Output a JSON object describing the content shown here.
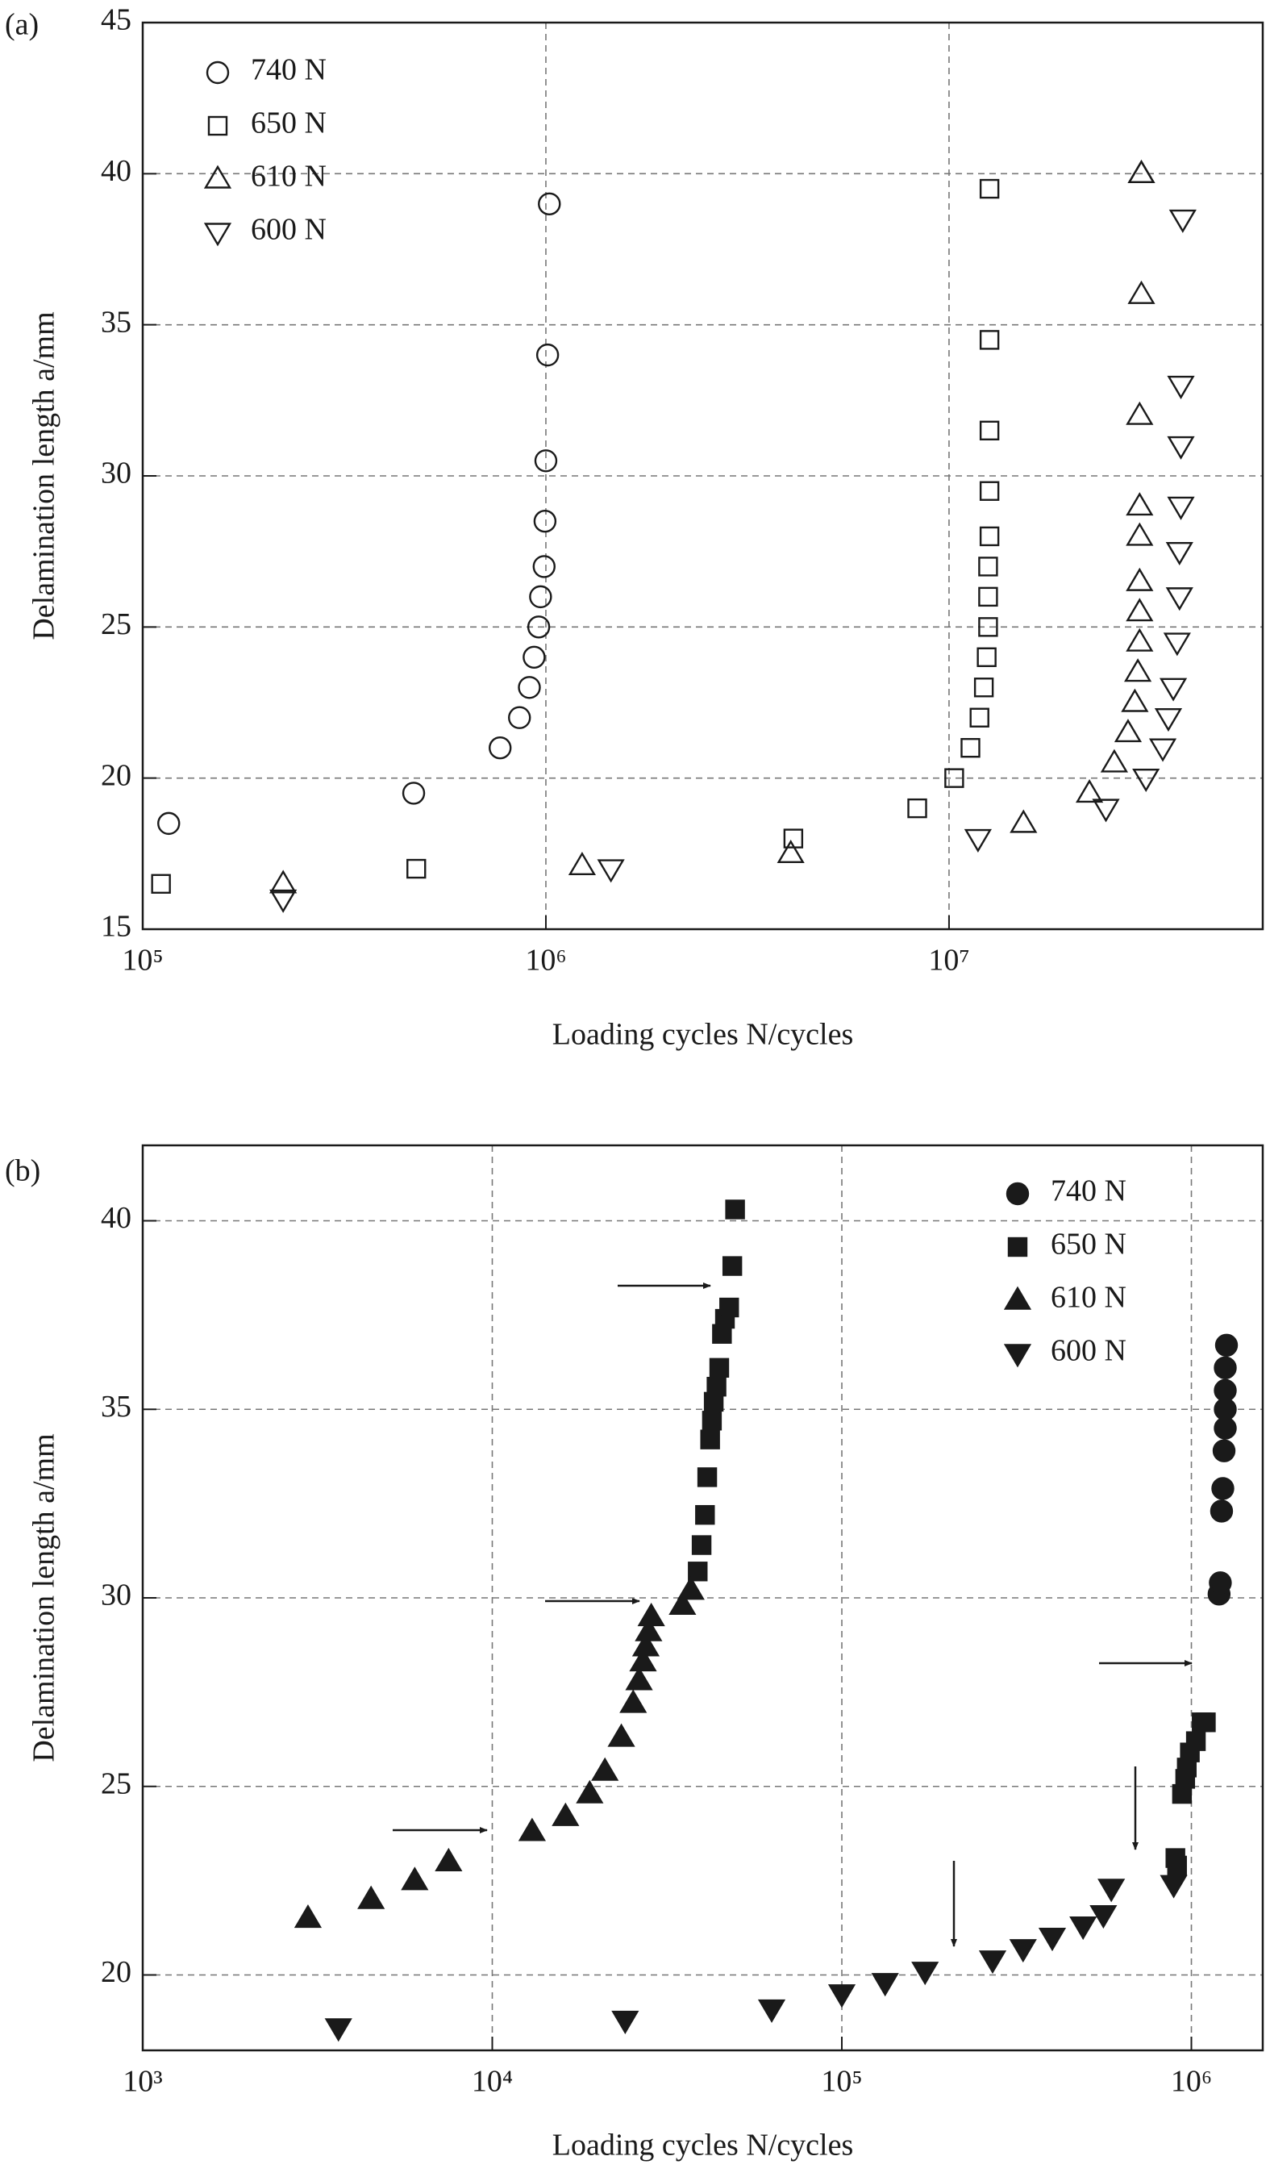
{
  "chart_data": [
    {
      "type": "scatter",
      "panel_label": "(a)",
      "xlabel": "Loading cycles N/cycles",
      "ylabel": "Delamination length a/mm",
      "xscale": "log",
      "xlim": [
        100000,
        60000000
      ],
      "xticks": [
        {
          "value": 100000,
          "label": "10⁵"
        },
        {
          "value": 1000000,
          "label": "10⁶"
        },
        {
          "value": 10000000,
          "label": "10⁷"
        }
      ],
      "ylim": [
        15,
        45
      ],
      "yticks": [
        15,
        20,
        25,
        30,
        35,
        40,
        45
      ],
      "grid": true,
      "legend": "upper left",
      "filled": false,
      "series": [
        {
          "name": "740 N",
          "marker": "circle",
          "color": "#1a1a1a",
          "x": [
            116000,
            470000,
            770000,
            860000,
            910000,
            935000,
            960000,
            970000,
            990000,
            995000,
            1000000,
            1010000,
            1020000
          ],
          "values": [
            18.5,
            19.5,
            21,
            22,
            23,
            24,
            25,
            26,
            27,
            28.5,
            30.5,
            34,
            39
          ]
        },
        {
          "name": "650 N",
          "marker": "square",
          "color": "#1a1a1a",
          "x": [
            111000,
            477000,
            4110000,
            8340000,
            10300000,
            11300000,
            11900000,
            12200000,
            12400000,
            12500000,
            12500000,
            12500000,
            12600000,
            12600000,
            12600000,
            12600000,
            12600000
          ],
          "values": [
            16.5,
            17,
            18,
            19,
            20,
            21,
            22,
            23,
            24,
            25,
            26,
            27,
            28,
            29.5,
            31.5,
            34.5,
            39.5
          ]
        },
        {
          "name": "610 N",
          "marker": "triangle-up",
          "color": "#1a1a1a",
          "x": [
            223000,
            1230000,
            4050000,
            15300000,
            22300000,
            25700000,
            27800000,
            28900000,
            29400000,
            29700000,
            29700000,
            29700000,
            29700000,
            29700000,
            29700000,
            30000000,
            30000000,
            30000000
          ],
          "values": [
            16.5,
            17.1,
            17.5,
            18.5,
            19.5,
            20.5,
            21.5,
            22.5,
            23.5,
            24.5,
            25.5,
            26.5,
            28,
            29,
            32,
            36,
            40,
            40
          ]
        },
        {
          "name": "600 N",
          "marker": "triangle-down",
          "color": "#1a1a1a",
          "x": [
            223000,
            1450000,
            11800000,
            24500000,
            30800000,
            33900000,
            35000000,
            36000000,
            36800000,
            37300000,
            37300000,
            37600000,
            37600000,
            37600000,
            38000000
          ],
          "values": [
            16,
            17,
            18,
            19,
            20,
            21,
            22,
            23,
            24.5,
            26,
            27.5,
            29,
            31,
            33,
            38.5
          ]
        }
      ]
    },
    {
      "type": "scatter",
      "panel_label": "(b)",
      "xlabel": "Loading cycles N/cycles",
      "ylabel": "Delamination length a/mm",
      "xscale": "log",
      "xlim": [
        1000,
        1600000
      ],
      "xticks": [
        {
          "value": 1000,
          "label": "10³"
        },
        {
          "value": 10000,
          "label": "10⁴"
        },
        {
          "value": 100000,
          "label": "10⁵"
        },
        {
          "value": 1000000,
          "label": "10⁶"
        }
      ],
      "ylim": [
        18,
        42
      ],
      "yticks": [
        20,
        25,
        30,
        35,
        40
      ],
      "grid": true,
      "legend": "upper right",
      "filled": true,
      "series": [
        {
          "name": "740 N",
          "marker": "circle",
          "color": "#1a1a1a",
          "x": [
            1200000,
            1210000,
            1220000,
            1230000,
            1240000,
            1250000,
            1250000,
            1250000,
            1250000,
            1260000
          ],
          "values": [
            30.1,
            30.4,
            32.3,
            32.9,
            33.9,
            34.5,
            35,
            35.5,
            36.1,
            36.7
          ]
        },
        {
          "name": "650 N",
          "marker": "square",
          "color": "#1a1a1a",
          "x": [
            38700,
            39700,
            40600,
            41200,
            42000,
            42500,
            43000,
            43800,
            44600,
            45400,
            46300,
            47600,
            48600,
            49500,
            900000,
            910000,
            940000,
            960000,
            970000,
            990000,
            1030000,
            1070000,
            1100000
          ],
          "values": [
            30.7,
            31.4,
            32.2,
            33.2,
            34.2,
            34.7,
            35.2,
            35.6,
            36.1,
            37,
            37.4,
            37.7,
            38.8,
            40.3,
            23.1,
            22.9,
            24.8,
            25.2,
            25.5,
            25.9,
            26.2,
            26.7,
            26.7
          ]
        },
        {
          "name": "610 N",
          "marker": "triangle-up",
          "color": "#1a1a1a",
          "x": [
            2970,
            4500,
            6000,
            7500,
            13000,
            16200,
            19000,
            21000,
            23400,
            25300,
            26300,
            27000,
            27500,
            28000,
            28500,
            35000,
            37000
          ],
          "values": [
            21.5,
            22,
            22.5,
            23,
            23.8,
            24.2,
            24.8,
            25.4,
            26.3,
            27.2,
            27.8,
            28.3,
            28.7,
            29.1,
            29.5,
            29.8,
            30.2
          ]
        },
        {
          "name": "600 N",
          "marker": "triangle-down",
          "color": "#1a1a1a",
          "x": [
            3630,
            24000,
            63000,
            100000,
            133000,
            173000,
            270000,
            330000,
            400000,
            490000,
            560000,
            590000,
            890000
          ],
          "values": [
            18.6,
            18.8,
            19.1,
            19.5,
            19.8,
            20.1,
            20.4,
            20.7,
            21,
            21.3,
            21.6,
            22.3,
            22.4
          ]
        }
      ]
    }
  ]
}
